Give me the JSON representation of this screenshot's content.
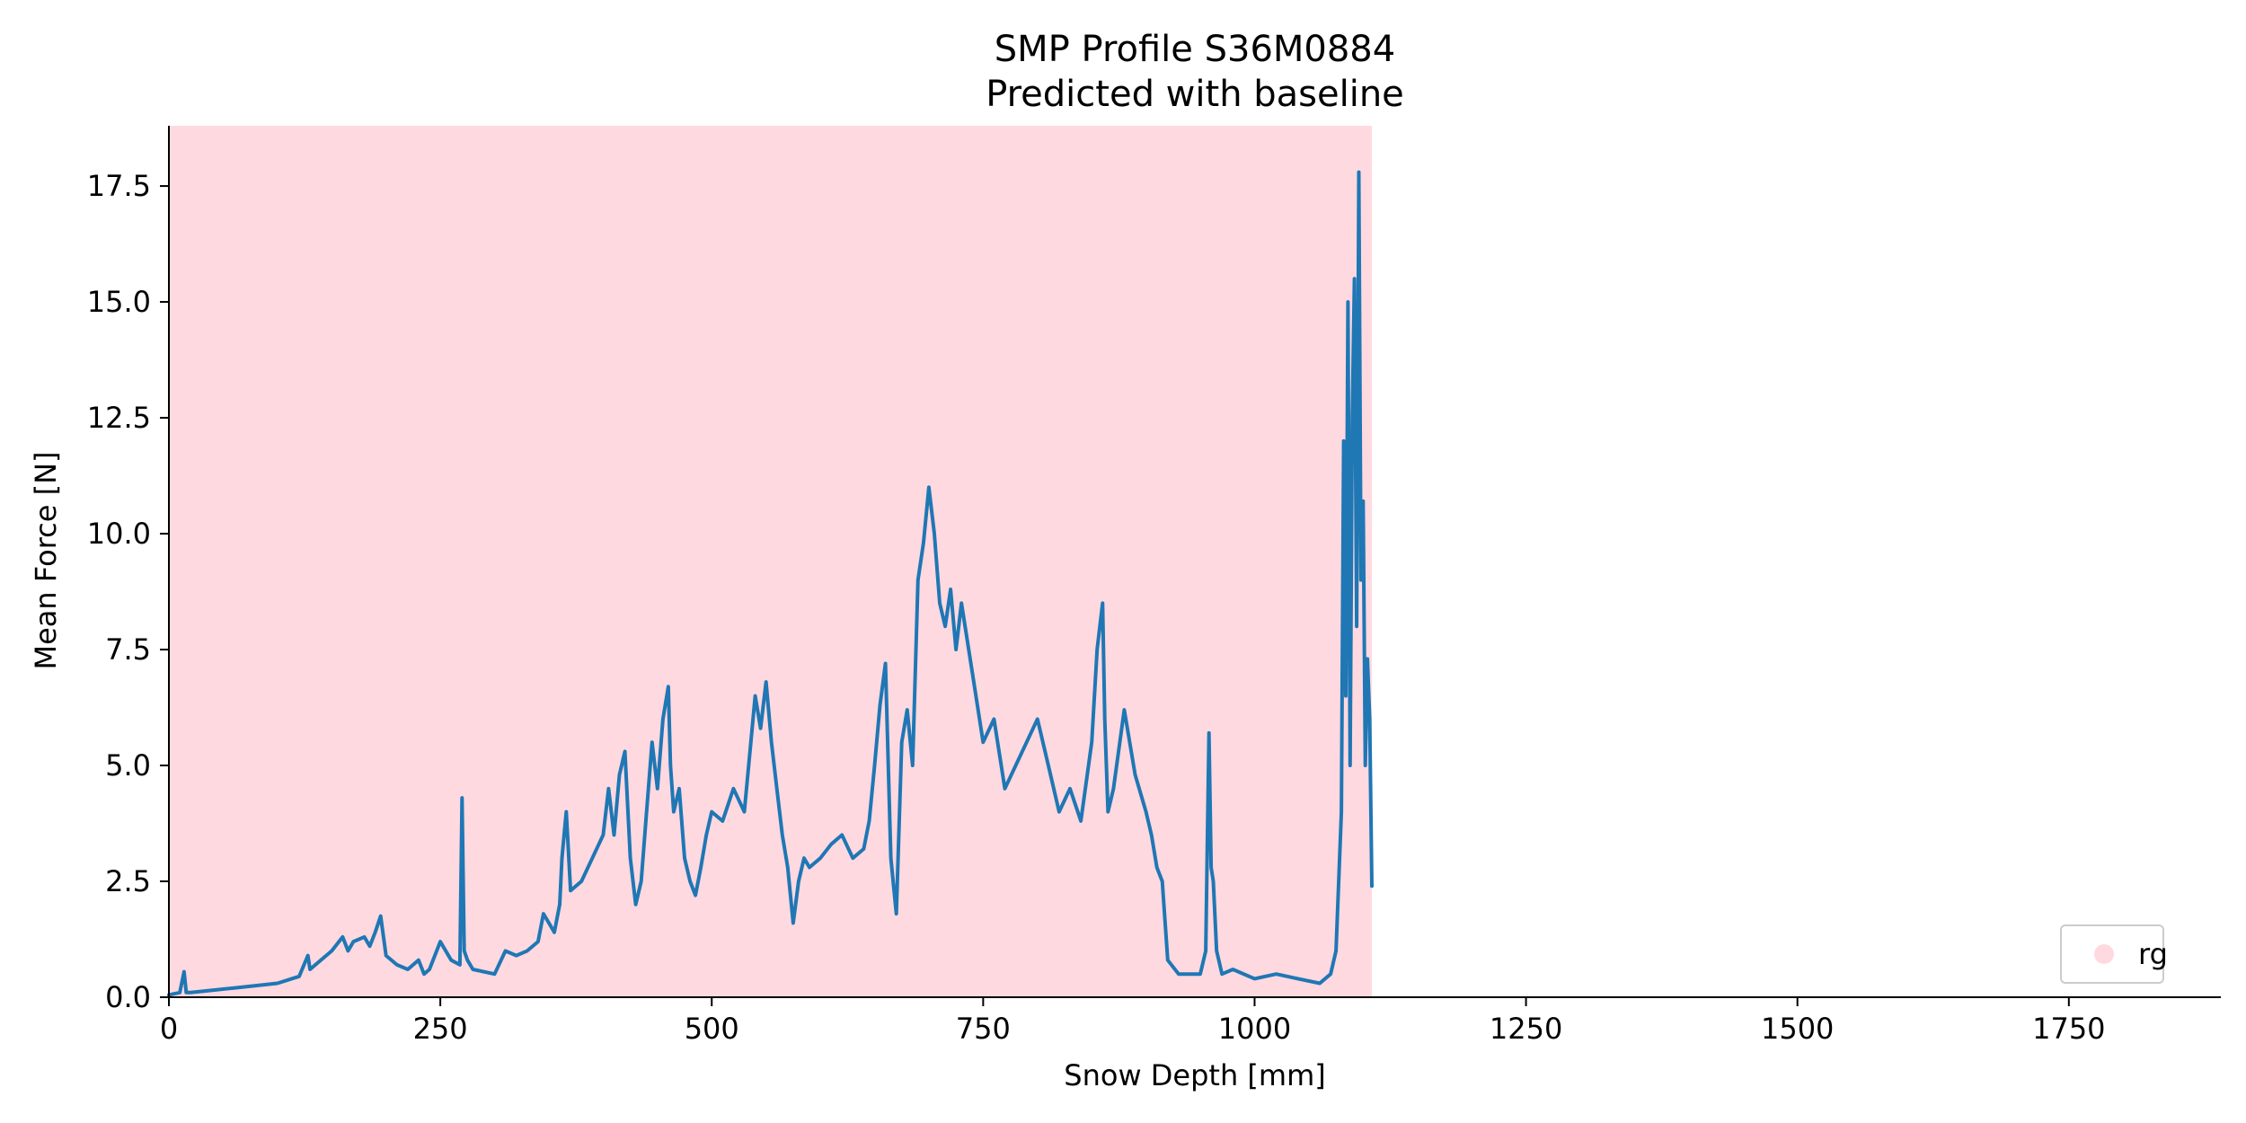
{
  "chart_data": {
    "type": "line",
    "title": "SMP Profile S36M0884",
    "subtitle": "Predicted with baseline",
    "xlabel": "Snow Depth [mm]",
    "ylabel": "Mean Force [N]",
    "xlim": [
      0,
      1890
    ],
    "ylim": [
      0,
      18.8
    ],
    "x_ticks": [
      0,
      250,
      500,
      750,
      1000,
      1250,
      1500,
      1750
    ],
    "y_ticks": [
      0.0,
      2.5,
      5.0,
      7.5,
      10.0,
      12.5,
      15.0,
      17.5
    ],
    "x_tick_labels": [
      "0",
      "250",
      "500",
      "750",
      "1000",
      "1250",
      "1500",
      "1750"
    ],
    "y_tick_labels": [
      "0.0",
      "2.5",
      "5.0",
      "7.5",
      "10.0",
      "12.5",
      "15.0",
      "17.5"
    ],
    "grid": false,
    "legend_position": "bottom-right",
    "shaded_regions": [
      {
        "label": "rg",
        "x_start": 0,
        "x_end": 1108,
        "color": "#ffc0cb"
      }
    ],
    "legend": [
      {
        "label": "rg",
        "color": "#ffc0cb"
      }
    ],
    "series": [
      {
        "color": "#1f77b4",
        "x": [
          0,
          10,
          14,
          16,
          20,
          40,
          60,
          80,
          100,
          120,
          128,
          130,
          135,
          150,
          160,
          165,
          170,
          180,
          185,
          190,
          195,
          200,
          210,
          220,
          230,
          235,
          240,
          250,
          260,
          268,
          270,
          272,
          275,
          280,
          300,
          310,
          320,
          330,
          340,
          345,
          350,
          355,
          360,
          362,
          366,
          370,
          380,
          390,
          400,
          405,
          410,
          415,
          420,
          425,
          430,
          435,
          440,
          445,
          450,
          455,
          460,
          462,
          465,
          470,
          475,
          480,
          485,
          490,
          495,
          500,
          510,
          520,
          530,
          540,
          545,
          550,
          555,
          560,
          565,
          570,
          575,
          580,
          585,
          590,
          600,
          610,
          620,
          630,
          640,
          645,
          650,
          655,
          660,
          665,
          670,
          675,
          680,
          685,
          690,
          695,
          700,
          705,
          710,
          715,
          720,
          725,
          730,
          740,
          750,
          760,
          770,
          780,
          790,
          800,
          810,
          820,
          830,
          840,
          850,
          855,
          860,
          862,
          865,
          870,
          880,
          890,
          900,
          905,
          910,
          915,
          920,
          930,
          950,
          955,
          958,
          960,
          962,
          965,
          970,
          980,
          1000,
          1020,
          1040,
          1060,
          1070,
          1075,
          1080,
          1082,
          1084,
          1086,
          1088,
          1090,
          1092,
          1094,
          1096,
          1098,
          1100,
          1102,
          1104,
          1106,
          1108
        ],
        "y": [
          0.05,
          0.1,
          0.55,
          0.1,
          0.1,
          0.15,
          0.2,
          0.25,
          0.3,
          0.45,
          0.9,
          0.6,
          0.7,
          1.0,
          1.3,
          1.0,
          1.2,
          1.3,
          1.1,
          1.4,
          1.75,
          0.9,
          0.7,
          0.6,
          0.8,
          0.5,
          0.6,
          1.2,
          0.8,
          0.7,
          4.3,
          1.0,
          0.8,
          0.6,
          0.5,
          1.0,
          0.9,
          1.0,
          1.2,
          1.8,
          1.6,
          1.4,
          2.0,
          3.0,
          4.0,
          2.3,
          2.5,
          3.0,
          3.5,
          4.5,
          3.5,
          4.8,
          5.3,
          3.0,
          2.0,
          2.5,
          4.0,
          5.5,
          4.5,
          6.0,
          6.7,
          5.0,
          4.0,
          4.5,
          3.0,
          2.5,
          2.2,
          2.8,
          3.5,
          4.0,
          3.8,
          4.5,
          4.0,
          6.5,
          5.8,
          6.8,
          5.5,
          4.5,
          3.5,
          2.8,
          1.6,
          2.5,
          3.0,
          2.8,
          3.0,
          3.3,
          3.5,
          3.0,
          3.2,
          3.8,
          5.0,
          6.3,
          7.2,
          3.0,
          1.8,
          5.5,
          6.2,
          5.0,
          9.0,
          9.8,
          11.0,
          10.0,
          8.5,
          8.0,
          8.8,
          7.5,
          8.5,
          7.0,
          5.5,
          6.0,
          4.5,
          5.0,
          5.5,
          6.0,
          5.0,
          4.0,
          4.5,
          3.8,
          5.5,
          7.5,
          8.5,
          6.0,
          4.0,
          4.5,
          6.2,
          4.8,
          4.0,
          3.5,
          2.8,
          2.5,
          0.8,
          0.5,
          0.5,
          1.0,
          5.7,
          2.8,
          2.5,
          1.0,
          0.5,
          0.6,
          0.4,
          0.5,
          0.4,
          0.3,
          0.5,
          1.0,
          4.0,
          12.0,
          6.5,
          15.0,
          5.0,
          12.5,
          15.5,
          8.0,
          17.8,
          9.0,
          10.7,
          5.0,
          7.3,
          6.0,
          2.4
        ]
      }
    ]
  }
}
